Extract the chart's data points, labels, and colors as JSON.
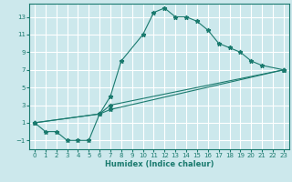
{
  "xlabel": "Humidex (Indice chaleur)",
  "background_color": "#cce8ec",
  "grid_color": "#ffffff",
  "line_color": "#1a7a6e",
  "xlim": [
    -0.5,
    23.5
  ],
  "ylim": [
    -2.0,
    14.5
  ],
  "xticks": [
    0,
    1,
    2,
    3,
    4,
    5,
    6,
    7,
    8,
    9,
    10,
    11,
    12,
    13,
    14,
    15,
    16,
    17,
    18,
    19,
    20,
    21,
    22,
    23
  ],
  "yticks": [
    -1,
    1,
    3,
    5,
    7,
    9,
    11,
    13
  ],
  "series": [
    {
      "x": [
        0,
        1,
        2,
        3,
        4,
        5,
        6,
        7,
        8,
        10,
        11,
        12,
        13,
        14,
        15,
        16,
        17,
        18,
        19,
        20,
        21,
        23
      ],
      "y": [
        1,
        0,
        0,
        -1,
        -1,
        -1,
        2,
        4,
        8,
        11,
        13.5,
        14,
        13,
        13,
        12.5,
        11.5,
        10,
        9.5,
        9,
        8,
        7.5,
        7
      ]
    },
    {
      "x": [
        0,
        6,
        7,
        23
      ],
      "y": [
        1,
        2,
        2.5,
        7
      ]
    },
    {
      "x": [
        0,
        6,
        7,
        23
      ],
      "y": [
        1,
        2,
        3,
        7
      ]
    }
  ]
}
